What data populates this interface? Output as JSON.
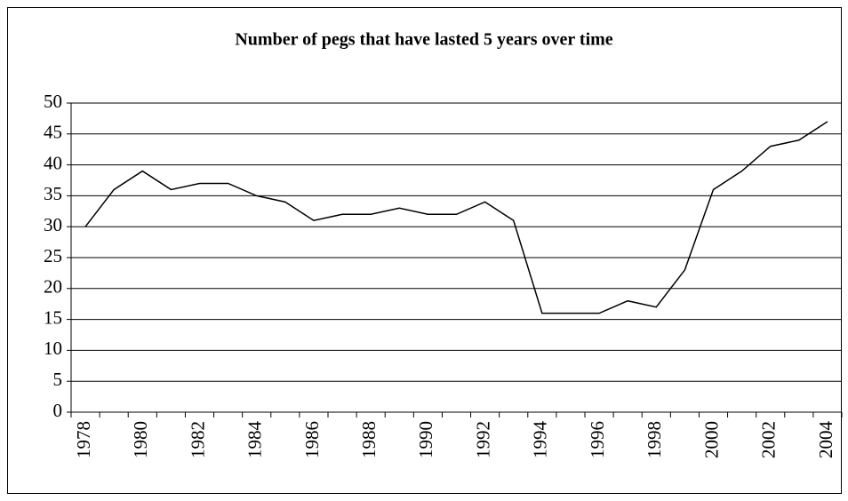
{
  "chart_data": {
    "type": "line",
    "title": "Number of pegs that have lasted 5 years over time",
    "categories": [
      "1978",
      null,
      "1980",
      null,
      "1982",
      null,
      "1984",
      null,
      "1986",
      null,
      "1988",
      null,
      "1990",
      null,
      "1992",
      null,
      "1994",
      null,
      "1996",
      null,
      "1998",
      null,
      "2000",
      null,
      "2002",
      null,
      "2004"
    ],
    "values": [
      30,
      36,
      39,
      36,
      37,
      37,
      35,
      34,
      31,
      32,
      32,
      33,
      32,
      32,
      34,
      31,
      16,
      16,
      16,
      18,
      17,
      23,
      36,
      39,
      43,
      44,
      47
    ],
    "color": "#000000",
    "ylim": [
      0,
      50
    ],
    "yticks": [
      0,
      5,
      10,
      15,
      20,
      25,
      30,
      35,
      40,
      45,
      50
    ],
    "grid": true
  }
}
